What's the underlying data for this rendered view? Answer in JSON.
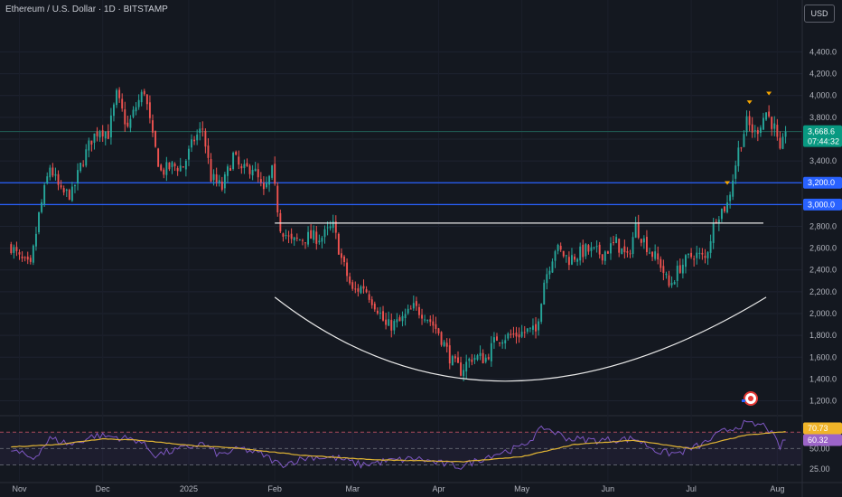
{
  "header": {
    "title": "Ethereum / U.S. Dollar · 1D · BITSTAMP",
    "currency_button": "USD"
  },
  "colors": {
    "background": "#141820",
    "up": "#26a69a",
    "down": "#ef5350",
    "level_line": "#2962ff",
    "cup_line": "#e8e8e8",
    "rsi_line": "#7e57c2",
    "rsi_ma": "#e0b434",
    "last_price_badge": "#089981",
    "level_badge": "#2962ff",
    "marker": "#f7a600",
    "rsi_badge_1": "#f0b429",
    "rsi_badge_2": "#9c64c8"
  },
  "chart_data": [
    {
      "type": "candlestick",
      "title": "Ethereum / U.S. Dollar · 1D · BITSTAMP",
      "ylabel": "",
      "y_ticks": [
        "1,200.0",
        "1,400.0",
        "1,600.0",
        "1,800.0",
        "2,000.0",
        "2,200.0",
        "2,400.0",
        "2,600.0",
        "2,800.0",
        "3,000.0",
        "3,200.0",
        "3,400.0",
        "3,600.0",
        "3,800.0",
        "4,000.0",
        "4,200.0",
        "4,400.0"
      ],
      "x_ticks": [
        "Nov",
        "Dec",
        "2025",
        "Feb",
        "Mar",
        "Apr",
        "May",
        "Jun",
        "Jul",
        "Aug"
      ],
      "ylim": [
        1080,
        4760
      ],
      "close_path": [
        [
          "2024-10-29",
          2620
        ],
        [
          "2024-11-01",
          2500
        ],
        [
          "2024-11-05",
          2420
        ],
        [
          "2024-11-08",
          2900
        ],
        [
          "2024-11-12",
          3350
        ],
        [
          "2024-11-16",
          3100
        ],
        [
          "2024-11-20",
          3100
        ],
        [
          "2024-11-23",
          3350
        ],
        [
          "2024-11-27",
          3600
        ],
        [
          "2024-11-30",
          3700
        ],
        [
          "2024-12-03",
          3650
        ],
        [
          "2024-12-06",
          4000
        ],
        [
          "2024-12-10",
          3700
        ],
        [
          "2024-12-13",
          3900
        ],
        [
          "2024-12-16",
          4050
        ],
        [
          "2024-12-19",
          3600
        ],
        [
          "2024-12-22",
          3300
        ],
        [
          "2024-12-26",
          3350
        ],
        [
          "2024-12-30",
          3350
        ],
        [
          "2025-01-03",
          3600
        ],
        [
          "2025-01-06",
          3700
        ],
        [
          "2025-01-09",
          3250
        ],
        [
          "2025-01-13",
          3150
        ],
        [
          "2025-01-17",
          3450
        ],
        [
          "2025-01-20",
          3300
        ],
        [
          "2025-01-24",
          3350
        ],
        [
          "2025-01-28",
          3100
        ],
        [
          "2025-01-31",
          3300
        ],
        [
          "2025-02-03",
          2800
        ],
        [
          "2025-02-07",
          2650
        ],
        [
          "2025-02-12",
          2700
        ],
        [
          "2025-02-18",
          2700
        ],
        [
          "2025-02-22",
          2800
        ],
        [
          "2025-02-25",
          2500
        ],
        [
          "2025-03-01",
          2200
        ],
        [
          "2025-03-05",
          2250
        ],
        [
          "2025-03-10",
          2050
        ],
        [
          "2025-03-13",
          1880
        ],
        [
          "2025-03-18",
          1920
        ],
        [
          "2025-03-23",
          2050
        ],
        [
          "2025-03-27",
          2000
        ],
        [
          "2025-04-01",
          1830
        ],
        [
          "2025-04-06",
          1550
        ],
        [
          "2025-04-09",
          1480
        ],
        [
          "2025-04-13",
          1600
        ],
        [
          "2025-04-18",
          1590
        ],
        [
          "2025-04-22",
          1780
        ],
        [
          "2025-04-28",
          1800
        ],
        [
          "2025-05-03",
          1840
        ],
        [
          "2025-05-06",
          1830
        ],
        [
          "2025-05-09",
          2300
        ],
        [
          "2025-05-13",
          2600
        ],
        [
          "2025-05-18",
          2500
        ],
        [
          "2025-05-24",
          2580
        ],
        [
          "2025-05-30",
          2550
        ],
        [
          "2025-06-04",
          2650
        ],
        [
          "2025-06-08",
          2500
        ],
        [
          "2025-06-11",
          2800
        ],
        [
          "2025-06-16",
          2580
        ],
        [
          "2025-06-20",
          2450
        ],
        [
          "2025-06-23",
          2250
        ],
        [
          "2025-06-27",
          2430
        ],
        [
          "2025-07-02",
          2550
        ],
        [
          "2025-07-06",
          2500
        ],
        [
          "2025-07-10",
          2900
        ],
        [
          "2025-07-14",
          3000
        ],
        [
          "2025-07-18",
          3500
        ],
        [
          "2025-07-21",
          3750
        ],
        [
          "2025-07-24",
          3650
        ],
        [
          "2025-07-28",
          3850
        ],
        [
          "2025-07-31",
          3700
        ],
        [
          "2025-08-02",
          3450
        ],
        [
          "2025-08-04",
          3668.6
        ]
      ],
      "horizontal_levels": [
        {
          "price": 3200,
          "label": "3,200.0"
        },
        {
          "price": 3000,
          "label": "3,000.0"
        }
      ],
      "neckline": {
        "from": "2025-02-01",
        "to": "2025-07-27",
        "price": 2830
      },
      "cup_curve": {
        "start": [
          "2025-02-01",
          2150
        ],
        "bottom": [
          "2025-04-25",
          1380
        ],
        "end": [
          "2025-07-28",
          2150
        ]
      },
      "last_price": {
        "label": "3,668.6",
        "countdown": "07:44:32",
        "price": 3668.6
      },
      "markers": [
        {
          "date": "2025-07-14",
          "price": 3140
        },
        {
          "date": "2025-07-22",
          "price": 3880
        },
        {
          "date": "2025-07-29",
          "price": 3960
        }
      ]
    },
    {
      "type": "line",
      "title": "",
      "series": [
        {
          "name": "",
          "values_path": [
            [
              "2024-10-29",
              48
            ],
            [
              "2024-11-06",
              38
            ],
            [
              "2024-11-12",
              62
            ],
            [
              "2024-11-20",
              55
            ],
            [
              "2024-11-28",
              66
            ],
            [
              "2024-12-06",
              64
            ],
            [
              "2024-12-14",
              60
            ],
            [
              "2024-12-20",
              42
            ],
            [
              "2024-12-30",
              50
            ],
            [
              "2025-01-06",
              56
            ],
            [
              "2025-01-12",
              42
            ],
            [
              "2025-01-20",
              50
            ],
            [
              "2025-01-28",
              42
            ],
            [
              "2025-02-03",
              30
            ],
            [
              "2025-02-14",
              40
            ],
            [
              "2025-02-24",
              38
            ],
            [
              "2025-03-04",
              30
            ],
            [
              "2025-03-12",
              34
            ],
            [
              "2025-03-24",
              38
            ],
            [
              "2025-04-01",
              32
            ],
            [
              "2025-04-09",
              28
            ],
            [
              "2025-04-20",
              42
            ],
            [
              "2025-05-01",
              52
            ],
            [
              "2025-05-09",
              76
            ],
            [
              "2025-05-18",
              62
            ],
            [
              "2025-05-28",
              60
            ],
            [
              "2025-06-11",
              62
            ],
            [
              "2025-06-20",
              45
            ],
            [
              "2025-06-26",
              44
            ],
            [
              "2025-07-05",
              55
            ],
            [
              "2025-07-12",
              70
            ],
            [
              "2025-07-20",
              80
            ],
            [
              "2025-07-28",
              78
            ],
            [
              "2025-08-02",
              52
            ],
            [
              "2025-08-04",
              60.32
            ]
          ]
        },
        {
          "name": "",
          "values_path": [
            [
              "2024-10-29",
              52
            ],
            [
              "2024-11-15",
              55
            ],
            [
              "2024-12-01",
              62
            ],
            [
              "2024-12-15",
              60
            ],
            [
              "2025-01-01",
              54
            ],
            [
              "2025-01-20",
              50
            ],
            [
              "2025-02-10",
              42
            ],
            [
              "2025-03-10",
              36
            ],
            [
              "2025-04-10",
              34
            ],
            [
              "2025-05-01",
              40
            ],
            [
              "2025-05-20",
              55
            ],
            [
              "2025-06-10",
              60
            ],
            [
              "2025-07-01",
              50
            ],
            [
              "2025-07-20",
              66
            ],
            [
              "2025-08-04",
              70.73
            ]
          ]
        }
      ],
      "ylim": [
        15,
        88
      ],
      "levels": [
        "70",
        "50",
        "30"
      ],
      "last_values": {
        "rsi": "60.32",
        "ma": "70.73"
      },
      "y_ticks": [
        "50.00",
        "25.00"
      ]
    }
  ]
}
